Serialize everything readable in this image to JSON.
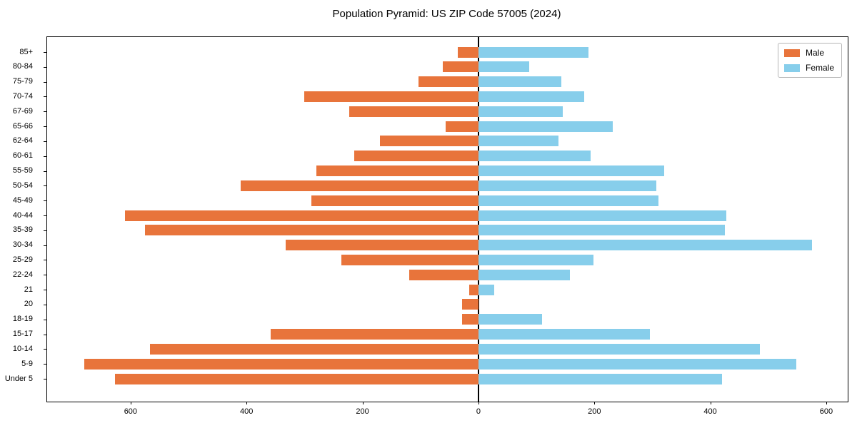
{
  "title": "Population Pyramid: US ZIP Code 57005 (2024)",
  "legend": {
    "male_label": "Male",
    "female_label": "Female"
  },
  "colors": {
    "male": "#E8743B",
    "female": "#87CEEB",
    "axis": "#000000"
  },
  "chart_data": {
    "type": "bar",
    "subtype": "population-pyramid",
    "orientation": "horizontal",
    "title": "Population Pyramid: US ZIP Code 57005 (2024)",
    "xlabel": "",
    "ylabel": "",
    "grid": false,
    "legend_position": "upper right",
    "xlim": [
      -744,
      637
    ],
    "x_ticks": [
      {
        "value": -600,
        "label": "600"
      },
      {
        "value": -400,
        "label": "400"
      },
      {
        "value": -200,
        "label": "200"
      },
      {
        "value": 0,
        "label": "0"
      },
      {
        "value": 200,
        "label": "200"
      },
      {
        "value": 400,
        "label": "400"
      },
      {
        "value": 600,
        "label": "600"
      }
    ],
    "categories": [
      "85+",
      "80-84",
      "75-79",
      "70-74",
      "67-69",
      "65-66",
      "62-64",
      "60-61",
      "55-59",
      "50-54",
      "45-49",
      "40-44",
      "35-39",
      "30-34",
      "25-29",
      "22-24",
      "21",
      "20",
      "18-19",
      "15-17",
      "10-14",
      "5-9",
      "Under 5"
    ],
    "series": [
      {
        "name": "Male",
        "side": "left",
        "color": "#E8743B",
        "values": [
          36,
          62,
          103,
          301,
          223,
          56,
          170,
          214,
          280,
          410,
          288,
          610,
          575,
          333,
          237,
          119,
          16,
          28,
          28,
          358,
          566,
          680,
          627
        ]
      },
      {
        "name": "Female",
        "side": "right",
        "color": "#87CEEB",
        "values": [
          190,
          87,
          143,
          183,
          145,
          232,
          138,
          194,
          321,
          307,
          311,
          428,
          425,
          575,
          199,
          158,
          27,
          0,
          110,
          296,
          485,
          548,
          420
        ]
      }
    ]
  }
}
